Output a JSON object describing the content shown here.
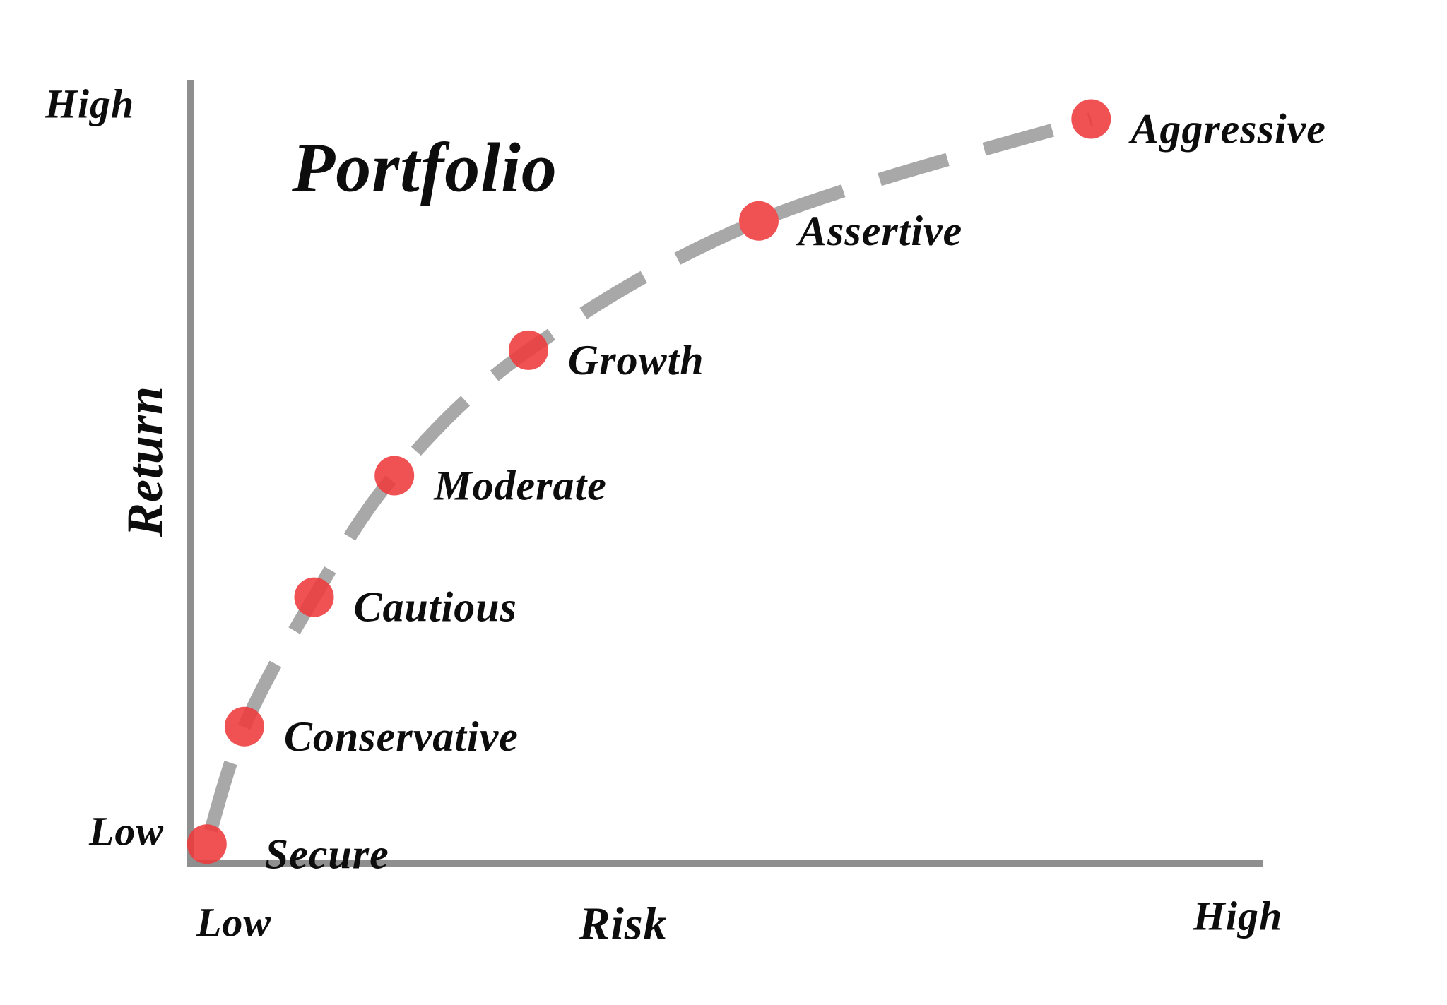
{
  "title": "Portfolio",
  "colors": {
    "dot": "#ee3a3c",
    "curve": "#a8a8a8",
    "axis": "#8f8f8f",
    "text": "#0d0d0d"
  },
  "axes": {
    "x": {
      "label": "Risk",
      "min_label": "Low",
      "max_label": "High"
    },
    "y": {
      "label": "Return",
      "min_label": "Low",
      "max_label": "High"
    }
  },
  "chart_data": {
    "type": "scatter",
    "title": "Portfolio",
    "xlabel": "Risk",
    "ylabel": "Return",
    "x_range_labels": [
      "Low",
      "High"
    ],
    "y_range_labels": [
      "Low",
      "High"
    ],
    "x_axis_numeric": false,
    "y_axis_numeric": false,
    "grid": false,
    "legend": "none",
    "curve_style": "thick gray dashed concave increasing curve through all points",
    "value_scale_note": "risk and return are relative 0-100 positions along the unlabeled Low-to-High axes",
    "points": [
      {
        "label": "Secure",
        "risk": 1.5,
        "return": 2.5,
        "label_dx": 82
      },
      {
        "label": "Conservative",
        "risk": 5,
        "return": 17.5
      },
      {
        "label": "Cautious",
        "risk": 11.5,
        "return": 34
      },
      {
        "label": "Moderate",
        "risk": 19,
        "return": 49.5
      },
      {
        "label": "Growth",
        "risk": 31.5,
        "return": 65.5
      },
      {
        "label": "Assertive",
        "risk": 53,
        "return": 82
      },
      {
        "label": "Aggressive",
        "risk": 84,
        "return": 95
      }
    ]
  }
}
